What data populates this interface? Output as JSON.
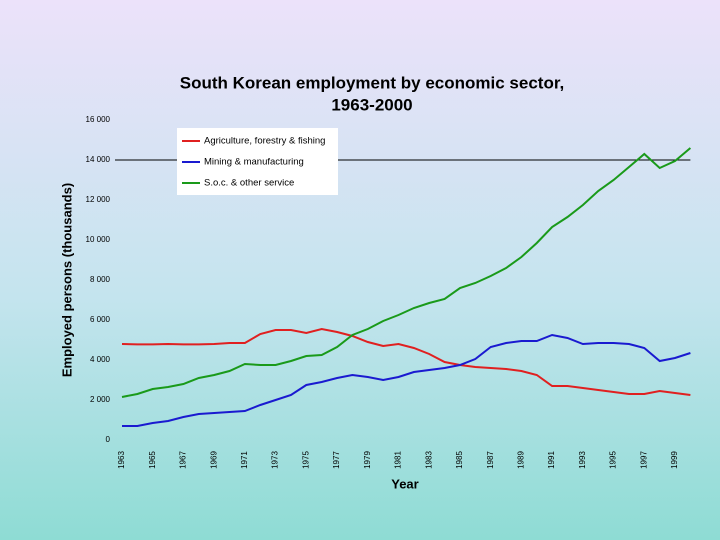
{
  "chart_data": {
    "type": "line",
    "title": [
      "South Korean employment by economic sector,",
      "1963-2000"
    ],
    "xlabel": "Year",
    "ylabel": "Employed persons (thousands)",
    "x": [
      1963,
      1964,
      1965,
      1966,
      1967,
      1968,
      1969,
      1970,
      1971,
      1972,
      1973,
      1974,
      1975,
      1976,
      1977,
      1978,
      1979,
      1980,
      1981,
      1982,
      1983,
      1984,
      1985,
      1986,
      1987,
      1988,
      1989,
      1990,
      1991,
      1992,
      1993,
      1994,
      1995,
      1996,
      1997,
      1998,
      1999,
      2000
    ],
    "series": [
      {
        "name": "Agriculture, forestry & fishing",
        "color": "#e02020",
        "values": [
          4800,
          4780,
          4780,
          4800,
          4780,
          4780,
          4800,
          4850,
          4850,
          5300,
          5500,
          5500,
          5350,
          5550,
          5400,
          5200,
          4900,
          4700,
          4800,
          4600,
          4300,
          3900,
          3750,
          3650,
          3600,
          3550,
          3450,
          3250,
          2700,
          2700,
          2600,
          2500,
          2400,
          2300,
          2300,
          2450,
          2350,
          2250
        ]
      },
      {
        "name": "Mining & manufacturing",
        "color": "#1a1ad0",
        "values": [
          700,
          700,
          850,
          950,
          1150,
          1300,
          1350,
          1400,
          1450,
          1750,
          2000,
          2250,
          2750,
          2900,
          3100,
          3250,
          3150,
          3000,
          3150,
          3400,
          3500,
          3600,
          3750,
          4050,
          4650,
          4850,
          4950,
          4950,
          5250,
          5100,
          4800,
          4850,
          4850,
          4800,
          4600,
          3950,
          4100,
          4350
        ]
      },
      {
        "name": "S.o.c. & other service",
        "color": "#1a9a1a",
        "values": [
          2150,
          2300,
          2550,
          2650,
          2800,
          3100,
          3250,
          3450,
          3800,
          3750,
          3750,
          3950,
          4200,
          4250,
          4650,
          5250,
          5550,
          5950,
          6250,
          6600,
          6850,
          7050,
          7600,
          7850,
          8200,
          8600,
          9150,
          9850,
          10650,
          11150,
          11750,
          12450,
          13000,
          13650,
          14300,
          13600,
          13950,
          14600
        ]
      }
    ],
    "xlim": [
      1963,
      2000
    ],
    "xticks": [
      1963,
      1965,
      1967,
      1969,
      1971,
      1973,
      1975,
      1977,
      1979,
      1981,
      1983,
      1985,
      1987,
      1989,
      1991,
      1993,
      1995,
      1997,
      1999
    ],
    "ylim": [
      0,
      16000
    ],
    "yticks": [
      0,
      {
        "value": 2000,
        "label": "2 000"
      },
      {
        "value": 4000,
        "label": "4 000"
      },
      {
        "value": 6000,
        "label": "6 000"
      },
      {
        "value": 8000,
        "label": "8 000"
      },
      {
        "value": 10000,
        "label": "10 000"
      },
      {
        "value": 12000,
        "label": "12 000"
      },
      {
        "value": 14000,
        "label": "14 000"
      },
      {
        "value": 16000,
        "label": "16 000"
      }
    ],
    "hline": 14000,
    "legend": "upper left"
  }
}
